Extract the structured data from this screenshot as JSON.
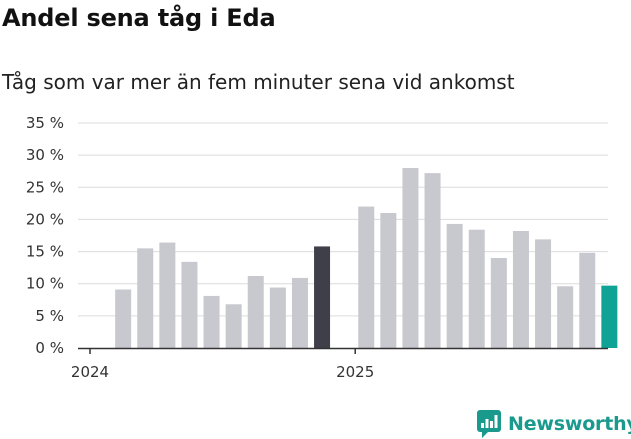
{
  "title": "Andel sena tåg i Eda",
  "subtitle": "Tåg som var mer än fem minuter sena vid ankomst",
  "brand": {
    "name": "Newsworthy",
    "color": "#1a9a8c",
    "icon": "newsworthy-logo-icon"
  },
  "colors": {
    "bar_default": "#c8c8cf",
    "bar_highlight_dark": "#3f3f4a",
    "bar_highlight_teal": "#0fa396",
    "grid": "#dcdcdc",
    "axis": "#333333"
  },
  "chart_data": {
    "type": "bar",
    "title": "Andel sena tåg i Eda",
    "subtitle": "Tåg som var mer än fem minuter sena vid ankomst",
    "xlabel": "",
    "ylabel": "",
    "ylim": [
      0,
      35
    ],
    "yticks": [
      0,
      5,
      10,
      15,
      20,
      25,
      30,
      35
    ],
    "ytick_labels": [
      "0 %",
      "5 %",
      "10 %",
      "15 %",
      "20 %",
      "25 %",
      "30 %",
      "35 %"
    ],
    "grid": true,
    "x_tick_labels": [
      {
        "label": "2024",
        "category_index": 0
      },
      {
        "label": "2025",
        "category_index": 12
      }
    ],
    "categories": [
      "2024-01",
      "2024-02",
      "2024-03",
      "2024-04",
      "2024-05",
      "2024-06",
      "2024-07",
      "2024-08",
      "2024-09",
      "2024-10",
      "2024-11",
      "2024-12",
      "2025-01",
      "2025-02",
      "2025-03",
      "2025-04",
      "2025-05",
      "2025-06",
      "2025-07",
      "2025-08",
      "2025-09",
      "2025-10",
      "2025-11",
      "2025-12"
    ],
    "values": [
      null,
      9.1,
      15.5,
      16.4,
      13.4,
      8.1,
      6.8,
      11.2,
      9.4,
      10.9,
      15.8,
      null,
      22.0,
      21.0,
      28.0,
      27.2,
      19.3,
      18.4,
      14.0,
      18.2,
      16.9,
      9.6,
      14.8,
      9.7
    ],
    "highlight": [
      {
        "index": 10,
        "color_key": "bar_highlight_dark"
      },
      {
        "index": 23,
        "color_key": "bar_highlight_teal"
      }
    ]
  }
}
